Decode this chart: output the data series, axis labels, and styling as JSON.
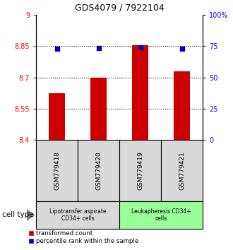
{
  "title": "GDS4079 / 7922104",
  "samples": [
    "GSM779418",
    "GSM779420",
    "GSM779419",
    "GSM779421"
  ],
  "red_values": [
    8.625,
    8.7,
    8.855,
    8.73
  ],
  "blue_values": [
    8.838,
    8.84,
    8.845,
    8.838
  ],
  "ylim_left": [
    8.4,
    9.0
  ],
  "ylim_right": [
    0,
    100
  ],
  "yticks_left": [
    8.4,
    8.55,
    8.7,
    8.85,
    9.0
  ],
  "ytick_labels_left": [
    "8.4",
    "8.55",
    "8.7",
    "8.85",
    "9"
  ],
  "yticks_right": [
    0,
    25,
    50,
    75,
    100
  ],
  "ytick_labels_right": [
    "0",
    "25",
    "50",
    "75",
    "100%"
  ],
  "hlines": [
    8.55,
    8.7,
    8.85
  ],
  "group1_label": "Lipotransfer aspirate\nCD34+ cells",
  "group2_label": "Leukapheresis CD34+\ncells",
  "cell_type_label": "cell type",
  "legend_red": "transformed count",
  "legend_blue": "percentile rank within the sample",
  "bar_color": "#cc0000",
  "dot_color": "#0000cc",
  "group1_color": "#d9d9d9",
  "group2_color": "#99ff99",
  "bar_base": 8.4
}
